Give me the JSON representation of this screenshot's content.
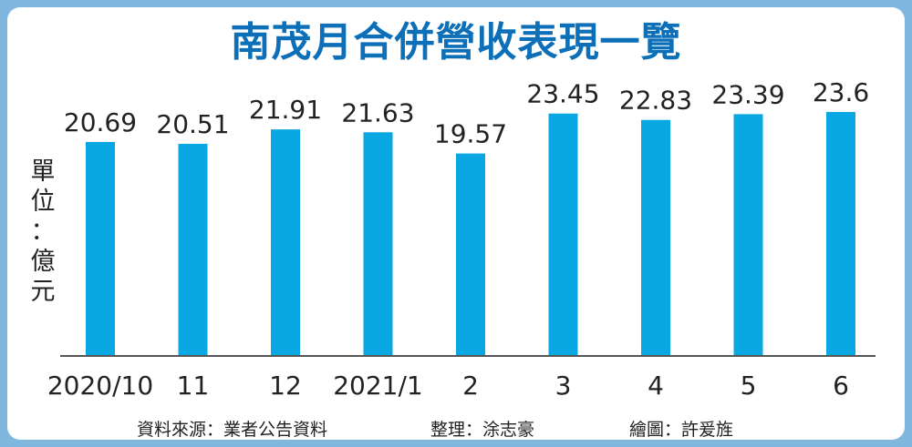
{
  "title": "南茂月合併營收表現一覽",
  "unit_label": [
    "單",
    "位",
    "：",
    "億",
    "元"
  ],
  "colors": {
    "bar": "#0aa8e2",
    "title": "#0c6fb8",
    "border": "#7fb7de",
    "axis": "#555555"
  },
  "chart_data": {
    "type": "bar",
    "title": "南茂月合併營收表現一覽",
    "ylabel": "單位：億元",
    "categories": [
      "2020/10",
      "11",
      "12",
      "2021/1",
      "2",
      "3",
      "4",
      "5",
      "6"
    ],
    "values": [
      20.69,
      20.51,
      21.91,
      21.63,
      19.57,
      23.45,
      22.83,
      23.39,
      23.6
    ],
    "value_labels": [
      "20.69",
      "20.51",
      "21.91",
      "21.63",
      "19.57",
      "23.45",
      "22.83",
      "23.39",
      "23.6"
    ],
    "ylim": [
      0,
      23.6
    ],
    "grid": false,
    "legend": "none"
  },
  "footer": {
    "source": "資料來源：業者公告資料",
    "editor": "整理：涂志豪",
    "illustrator": "繪圖：許爰旌"
  }
}
